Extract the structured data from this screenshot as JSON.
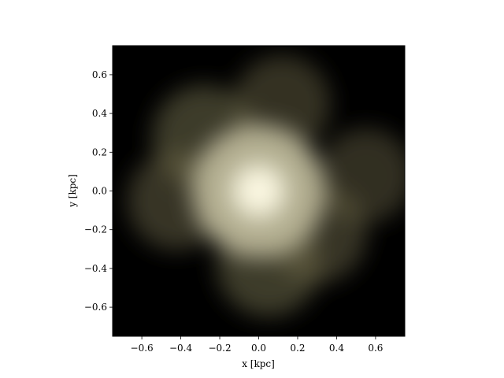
{
  "chart_data": {
    "type": "heatmap",
    "title": "",
    "xlabel": "x [kpc]",
    "ylabel": "y [kpc]",
    "xlim": [
      -0.75,
      0.75
    ],
    "ylim": [
      -0.75,
      0.75
    ],
    "x_ticks": [
      -0.6,
      -0.4,
      -0.2,
      0.0,
      0.2,
      0.4,
      0.6
    ],
    "x_tick_labels": [
      "−0.6",
      "−0.4",
      "−0.2",
      "0.0",
      "0.2",
      "0.4",
      "0.6"
    ],
    "y_ticks": [
      -0.6,
      -0.4,
      -0.2,
      0.0,
      0.2,
      0.4,
      0.6
    ],
    "y_tick_labels": [
      "−0.6",
      "−0.4",
      "−0.2",
      "0.0",
      "0.2",
      "0.4",
      "0.6"
    ],
    "grid": false,
    "background_color": "#000000",
    "colormap": [
      "#000000",
      "#2c2a14",
      "#6e6a4a",
      "#b9b597",
      "#fffbe6"
    ],
    "peak_center": [
      0.0,
      0.0
    ],
    "lobes": [
      {
        "x": 0.0,
        "y": 0.0,
        "weight": 1.0
      },
      {
        "x": -0.28,
        "y": 0.28,
        "weight": 0.55
      },
      {
        "x": -0.42,
        "y": -0.05,
        "weight": 0.45
      },
      {
        "x": 0.05,
        "y": -0.38,
        "weight": 0.55
      },
      {
        "x": 0.3,
        "y": -0.22,
        "weight": 0.45
      },
      {
        "x": 0.55,
        "y": 0.08,
        "weight": 0.35
      },
      {
        "x": 0.12,
        "y": 0.45,
        "weight": 0.4
      }
    ]
  }
}
